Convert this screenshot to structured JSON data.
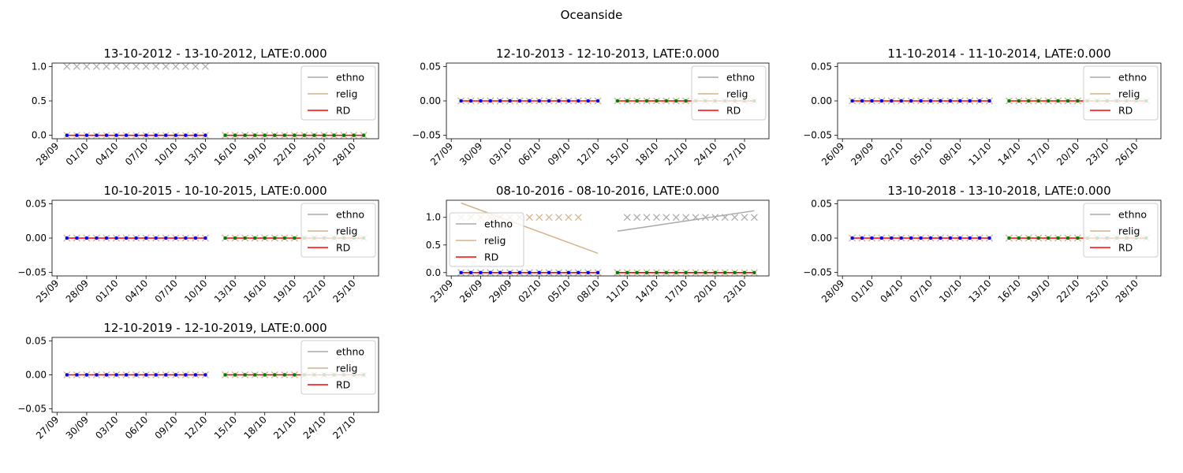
{
  "figure": {
    "suptitle": "Oceanside"
  },
  "legend_labels": [
    "ethno",
    "relig",
    "RD"
  ],
  "colors": {
    "ethno": "#a9a9a9",
    "relig": "#d2b48c",
    "RD": "#ff0000",
    "pre_marker": "#0000ff",
    "post_marker": "#008000"
  },
  "chart_data": [
    {
      "type": "line",
      "title": "13-10-2012 - 13-10-2012, LATE:0.000",
      "x_axis": "date",
      "x_start": "2012-09-29",
      "pre_days": 15,
      "post_days": 15,
      "xticks": [
        "28/09",
        "01/10",
        "04/10",
        "07/10",
        "10/10",
        "13/10",
        "16/10",
        "19/10",
        "22/10",
        "25/10",
        "28/10"
      ],
      "yticks": [
        "0.0",
        "0.5",
        "1.0"
      ],
      "ylim": [
        -0.05,
        1.05
      ],
      "legend": "upper right",
      "series": [
        {
          "name": "ethno",
          "pre_points": [
            1,
            1,
            1,
            1,
            1,
            1,
            1,
            1,
            1,
            1,
            1,
            1,
            1,
            1,
            1
          ],
          "post_points": [
            0,
            0,
            0,
            0,
            0,
            0,
            0,
            0,
            0,
            0,
            0,
            0,
            0,
            0,
            0
          ]
        },
        {
          "name": "relig",
          "pre_points": [
            0,
            0,
            0,
            0,
            0,
            0,
            0,
            0,
            0,
            0,
            0,
            0,
            0,
            0,
            0
          ],
          "post_points": [
            0,
            0,
            0,
            0,
            0,
            0,
            0,
            0,
            0,
            0,
            0,
            0,
            0,
            0,
            0
          ]
        },
        {
          "name": "RD",
          "pre_line": [
            0,
            0
          ],
          "post_line": [
            0,
            0
          ]
        }
      ]
    },
    {
      "type": "line",
      "title": "12-10-2013 - 12-10-2013, LATE:0.000",
      "x_axis": "date",
      "x_start": "2013-09-28",
      "pre_days": 15,
      "post_days": 15,
      "xticks": [
        "27/09",
        "30/09",
        "03/10",
        "06/10",
        "09/10",
        "12/10",
        "15/10",
        "18/10",
        "21/10",
        "24/10",
        "27/10"
      ],
      "yticks": [
        "−0.05",
        "0.00",
        "0.05"
      ],
      "ylim": [
        -0.055,
        0.055
      ],
      "legend": "upper right",
      "series": [
        {
          "name": "ethno",
          "pre_points": [
            0,
            0,
            0,
            0,
            0,
            0,
            0,
            0,
            0,
            0,
            0,
            0,
            0,
            0,
            0
          ],
          "post_points": [
            0,
            0,
            0,
            0,
            0,
            0,
            0,
            0,
            0,
            0,
            0,
            0,
            0,
            0,
            0
          ]
        },
        {
          "name": "relig",
          "pre_points": [
            0,
            0,
            0,
            0,
            0,
            0,
            0,
            0,
            0,
            0,
            0,
            0,
            0,
            0,
            0
          ],
          "post_points": [
            0,
            0,
            0,
            0,
            0,
            0,
            0,
            0,
            0,
            0,
            0,
            0,
            0,
            0,
            0
          ]
        },
        {
          "name": "RD",
          "pre_line": [
            0,
            0
          ],
          "post_line": [
            0,
            0
          ]
        }
      ]
    },
    {
      "type": "line",
      "title": "11-10-2014 - 11-10-2014, LATE:0.000",
      "x_axis": "date",
      "x_start": "2014-09-27",
      "pre_days": 15,
      "post_days": 15,
      "xticks": [
        "26/09",
        "29/09",
        "02/10",
        "05/10",
        "08/10",
        "11/10",
        "14/10",
        "17/10",
        "20/10",
        "23/10",
        "26/10"
      ],
      "yticks": [
        "−0.05",
        "0.00",
        "0.05"
      ],
      "ylim": [
        -0.055,
        0.055
      ],
      "legend": "upper right",
      "series": [
        {
          "name": "ethno",
          "pre_points": [
            0,
            0,
            0,
            0,
            0,
            0,
            0,
            0,
            0,
            0,
            0,
            0,
            0,
            0,
            0
          ],
          "post_points": [
            0,
            0,
            0,
            0,
            0,
            0,
            0,
            0,
            0,
            0,
            0,
            0,
            0,
            0,
            0
          ]
        },
        {
          "name": "relig",
          "pre_points": [
            0,
            0,
            0,
            0,
            0,
            0,
            0,
            0,
            0,
            0,
            0,
            0,
            0,
            0,
            0
          ],
          "post_points": [
            0,
            0,
            0,
            0,
            0,
            0,
            0,
            0,
            0,
            0,
            0,
            0,
            0,
            0,
            0
          ]
        },
        {
          "name": "RD",
          "pre_line": [
            0,
            0
          ],
          "post_line": [
            0,
            0
          ]
        }
      ]
    },
    {
      "type": "line",
      "title": "10-10-2015 - 10-10-2015, LATE:0.000",
      "x_axis": "date",
      "x_start": "2015-09-26",
      "pre_days": 15,
      "post_days": 15,
      "xticks": [
        "25/09",
        "28/09",
        "01/10",
        "04/10",
        "07/10",
        "10/10",
        "13/10",
        "16/10",
        "19/10",
        "22/10",
        "25/10"
      ],
      "yticks": [
        "−0.05",
        "0.00",
        "0.05"
      ],
      "ylim": [
        -0.055,
        0.055
      ],
      "legend": "upper right",
      "series": [
        {
          "name": "ethno",
          "pre_points": [
            0,
            0,
            0,
            0,
            0,
            0,
            0,
            0,
            0,
            0,
            0,
            0,
            0,
            0,
            0
          ],
          "post_points": [
            0,
            0,
            0,
            0,
            0,
            0,
            0,
            0,
            0,
            0,
            0,
            0,
            0,
            0,
            0
          ]
        },
        {
          "name": "relig",
          "pre_points": [
            0,
            0,
            0,
            0,
            0,
            0,
            0,
            0,
            0,
            0,
            0,
            0,
            0,
            0,
            0
          ],
          "post_points": [
            0,
            0,
            0,
            0,
            0,
            0,
            0,
            0,
            0,
            0,
            0,
            0,
            0,
            0,
            0
          ]
        },
        {
          "name": "RD",
          "pre_line": [
            0,
            0
          ],
          "post_line": [
            0,
            0
          ]
        }
      ]
    },
    {
      "type": "line",
      "title": "08-10-2016 - 08-10-2016, LATE:0.000",
      "x_axis": "date",
      "x_start": "2016-09-24",
      "pre_days": 15,
      "post_days": 15,
      "xticks": [
        "23/09",
        "26/09",
        "29/09",
        "02/10",
        "05/10",
        "08/10",
        "11/10",
        "14/10",
        "17/10",
        "20/10",
        "23/10"
      ],
      "yticks": [
        "0.0",
        "0.5",
        "1.0"
      ],
      "ylim": [
        -0.06,
        1.31
      ],
      "legend": "center left",
      "series": [
        {
          "name": "ethno",
          "pre_points": [
            0,
            0,
            0,
            0,
            0,
            0,
            0,
            0,
            0,
            0,
            0,
            0,
            0,
            0,
            0
          ],
          "post_points": [
            0,
            1,
            1,
            1,
            1,
            1,
            1,
            1,
            1,
            1,
            1,
            1,
            1,
            1,
            1
          ],
          "pre_line": [
            0.0,
            0.0
          ],
          "post_line": [
            0.75,
            1.12
          ]
        },
        {
          "name": "relig",
          "pre_points": [
            1,
            1,
            1,
            1,
            1,
            1,
            1,
            1,
            1,
            1,
            1,
            1,
            1,
            0,
            0
          ],
          "post_points": [
            0,
            0,
            0,
            0,
            0,
            0,
            0,
            0,
            0,
            0,
            0,
            0,
            0,
            0,
            0
          ],
          "pre_line": [
            1.26,
            0.35
          ],
          "post_line": [
            0.0,
            0.0
          ]
        },
        {
          "name": "RD",
          "pre_line": [
            0,
            0
          ],
          "post_line": [
            0,
            0
          ]
        }
      ]
    },
    {
      "type": "line",
      "title": "13-10-2018 - 13-10-2018, LATE:0.000",
      "x_axis": "date",
      "x_start": "2018-09-29",
      "pre_days": 15,
      "post_days": 15,
      "xticks": [
        "28/09",
        "01/10",
        "04/10",
        "07/10",
        "10/10",
        "13/10",
        "16/10",
        "19/10",
        "22/10",
        "25/10",
        "28/10"
      ],
      "yticks": [
        "−0.05",
        "0.00",
        "0.05"
      ],
      "ylim": [
        -0.055,
        0.055
      ],
      "legend": "upper right",
      "series": [
        {
          "name": "ethno",
          "pre_points": [
            0,
            0,
            0,
            0,
            0,
            0,
            0,
            0,
            0,
            0,
            0,
            0,
            0,
            0,
            0
          ],
          "post_points": [
            0,
            0,
            0,
            0,
            0,
            0,
            0,
            0,
            0,
            0,
            0,
            0,
            0,
            0,
            0
          ]
        },
        {
          "name": "relig",
          "pre_points": [
            0,
            0,
            0,
            0,
            0,
            0,
            0,
            0,
            0,
            0,
            0,
            0,
            0,
            0,
            0
          ],
          "post_points": [
            0,
            0,
            0,
            0,
            0,
            0,
            0,
            0,
            0,
            0,
            0,
            0,
            0,
            0,
            0
          ]
        },
        {
          "name": "RD",
          "pre_line": [
            0,
            0
          ],
          "post_line": [
            0,
            0
          ]
        }
      ]
    },
    {
      "type": "line",
      "title": "12-10-2019 - 12-10-2019, LATE:0.000",
      "x_axis": "date",
      "x_start": "2019-09-28",
      "pre_days": 15,
      "post_days": 15,
      "xticks": [
        "27/09",
        "30/09",
        "03/10",
        "06/10",
        "09/10",
        "12/10",
        "15/10",
        "18/10",
        "21/10",
        "24/10",
        "27/10"
      ],
      "yticks": [
        "−0.05",
        "0.00",
        "0.05"
      ],
      "ylim": [
        -0.055,
        0.055
      ],
      "legend": "upper right",
      "series": [
        {
          "name": "ethno",
          "pre_points": [
            0,
            0,
            0,
            0,
            0,
            0,
            0,
            0,
            0,
            0,
            0,
            0,
            0,
            0,
            0
          ],
          "post_points": [
            0,
            0,
            0,
            0,
            0,
            0,
            0,
            0,
            0,
            0,
            0,
            0,
            0,
            0,
            0
          ]
        },
        {
          "name": "relig",
          "pre_points": [
            0,
            0,
            0,
            0,
            0,
            0,
            0,
            0,
            0,
            0,
            0,
            0,
            0,
            0,
            0
          ],
          "post_points": [
            0,
            0,
            0,
            0,
            0,
            0,
            0,
            0,
            0,
            0,
            0,
            0,
            0,
            0,
            0
          ]
        },
        {
          "name": "RD",
          "pre_line": [
            0,
            0
          ],
          "post_line": [
            0,
            0
          ]
        }
      ]
    }
  ]
}
